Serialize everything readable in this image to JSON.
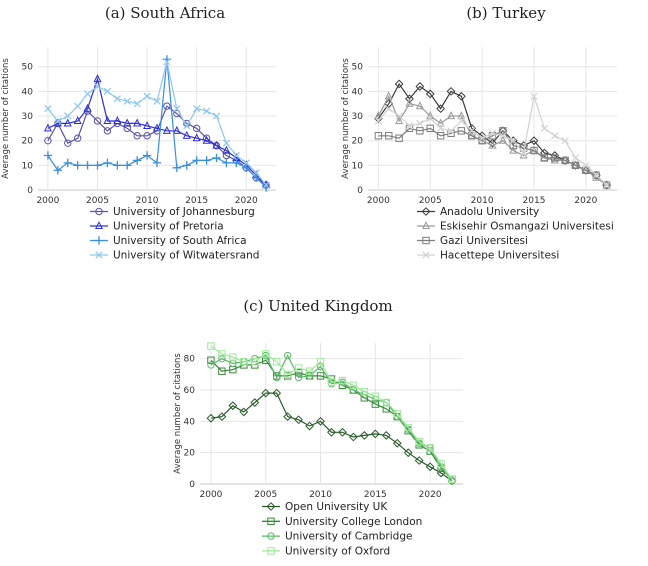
{
  "chart_data": [
    {
      "type": "line",
      "caption": "(a) South Africa",
      "ylabel": "Average number of citations",
      "xlabel": "",
      "xlim": [
        1999,
        2023
      ],
      "ylim": [
        0,
        58
      ],
      "xticks": [
        2000,
        2005,
        2010,
        2015,
        2020
      ],
      "yticks": [
        0,
        10,
        20,
        30,
        40,
        50
      ],
      "grid": true,
      "legend_position": "bottom",
      "x": [
        2000,
        2001,
        2002,
        2003,
        2004,
        2005,
        2006,
        2007,
        2008,
        2009,
        2010,
        2011,
        2012,
        2013,
        2014,
        2015,
        2016,
        2017,
        2018,
        2019,
        2020,
        2021,
        2022
      ],
      "series": [
        {
          "name": "University of Johannesburg",
          "color": "#5a55a8",
          "marker": "circle",
          "values": [
            20,
            27,
            19,
            21,
            32,
            28,
            24,
            27,
            25,
            22,
            22,
            24,
            34,
            31,
            27,
            25,
            21,
            18,
            14,
            12,
            9,
            5,
            2
          ]
        },
        {
          "name": "University of Pretoria",
          "color": "#2e2ed6",
          "marker": "triangle",
          "values": [
            25,
            27,
            27,
            28,
            33,
            45,
            28,
            28,
            27,
            27,
            26,
            25,
            24,
            24,
            22,
            21,
            20,
            18,
            16,
            13,
            10,
            6,
            2
          ]
        },
        {
          "name": "University of South Africa",
          "color": "#3a8ee0",
          "marker": "plus",
          "values": [
            14,
            8,
            11,
            10,
            10,
            10,
            11,
            10,
            10,
            12,
            14,
            11,
            53,
            9,
            10,
            12,
            12,
            13,
            11,
            11,
            9,
            5,
            1
          ]
        },
        {
          "name": "University of Witwatersrand",
          "color": "#8fc7ef",
          "marker": "x",
          "values": [
            33,
            28,
            30,
            34,
            39,
            42,
            40,
            37,
            36,
            35,
            38,
            36,
            52,
            33,
            26,
            33,
            32,
            30,
            19,
            14,
            11,
            7,
            2
          ]
        }
      ]
    },
    {
      "type": "line",
      "caption": "(b) Turkey",
      "ylabel": "Average number of citations",
      "xlabel": "",
      "xlim": [
        1999,
        2023
      ],
      "ylim": [
        0,
        58
      ],
      "xticks": [
        2000,
        2005,
        2010,
        2015,
        2020
      ],
      "yticks": [
        0,
        10,
        20,
        30,
        40,
        50
      ],
      "grid": true,
      "legend_position": "bottom",
      "x": [
        2000,
        2001,
        2002,
        2003,
        2004,
        2005,
        2006,
        2007,
        2008,
        2009,
        2010,
        2011,
        2012,
        2013,
        2014,
        2015,
        2016,
        2017,
        2018,
        2019,
        2020,
        2021,
        2022
      ],
      "series": [
        {
          "name": "Anadolu University",
          "color": "#3c3c3c",
          "marker": "diamond",
          "values": [
            29,
            35,
            43,
            37,
            42,
            39,
            33,
            40,
            38,
            25,
            22,
            19,
            24,
            20,
            18,
            20,
            15,
            14,
            12,
            10,
            8,
            6,
            2
          ]
        },
        {
          "name": "Eskisehir Osmangazi Universitesi",
          "color": "#9a9a9a",
          "marker": "triangle",
          "values": [
            30,
            38,
            28,
            35,
            34,
            30,
            27,
            30,
            30,
            22,
            20,
            18,
            20,
            16,
            14,
            16,
            13,
            12,
            12,
            10,
            8,
            5,
            2
          ]
        },
        {
          "name": "Gazi Universitesi",
          "color": "#7d7d7d",
          "marker": "square",
          "values": [
            22,
            22,
            21,
            25,
            24,
            25,
            22,
            23,
            24,
            22,
            20,
            22,
            24,
            18,
            17,
            16,
            13,
            13,
            12,
            10,
            8,
            6,
            2
          ]
        },
        {
          "name": "Hacettepe Universitesi",
          "color": "#d2d2d2",
          "marker": "x",
          "values": [
            28,
            33,
            30,
            26,
            27,
            29,
            25,
            24,
            28,
            24,
            21,
            23,
            22,
            20,
            15,
            38,
            25,
            22,
            20,
            13,
            10,
            6,
            2
          ]
        }
      ]
    },
    {
      "type": "line",
      "caption": "(c) United Kingdom",
      "ylabel": "Average number of citations",
      "xlabel": "",
      "xlim": [
        1999,
        2023
      ],
      "ylim": [
        0,
        90
      ],
      "xticks": [
        2000,
        2005,
        2010,
        2015,
        2020
      ],
      "yticks": [
        0,
        20,
        40,
        60,
        80
      ],
      "grid": true,
      "legend_position": "bottom",
      "x": [
        2000,
        2001,
        2002,
        2003,
        2004,
        2005,
        2006,
        2007,
        2008,
        2009,
        2010,
        2011,
        2012,
        2013,
        2014,
        2015,
        2016,
        2017,
        2018,
        2019,
        2020,
        2021,
        2022
      ],
      "series": [
        {
          "name": "Open University UK",
          "color": "#2a5a2a",
          "marker": "diamond",
          "values": [
            42,
            43,
            50,
            46,
            52,
            58,
            58,
            43,
            41,
            37,
            40,
            33,
            33,
            30,
            31,
            32,
            31,
            26,
            20,
            15,
            11,
            7,
            2
          ]
        },
        {
          "name": "University College London",
          "color": "#3a8a3a",
          "marker": "square",
          "values": [
            79,
            72,
            73,
            76,
            76,
            79,
            69,
            69,
            71,
            69,
            69,
            67,
            63,
            60,
            55,
            51,
            48,
            43,
            34,
            25,
            21,
            10,
            3
          ]
        },
        {
          "name": "University of Cambridge",
          "color": "#5cb86a",
          "marker": "circle",
          "values": [
            76,
            80,
            77,
            78,
            80,
            82,
            68,
            82,
            68,
            69,
            75,
            64,
            65,
            60,
            57,
            54,
            52,
            43,
            35,
            26,
            23,
            11,
            2
          ]
        },
        {
          "name": "University of Oxford",
          "color": "#9ee89a",
          "marker": "square",
          "values": [
            88,
            83,
            81,
            78,
            78,
            83,
            78,
            70,
            74,
            72,
            78,
            65,
            66,
            63,
            59,
            56,
            52,
            45,
            36,
            27,
            23,
            13,
            3
          ]
        }
      ]
    }
  ]
}
